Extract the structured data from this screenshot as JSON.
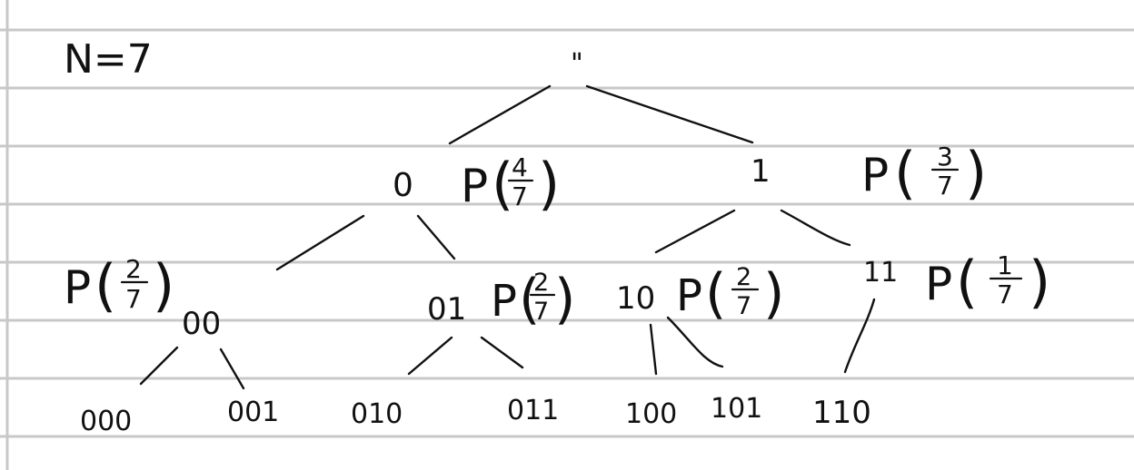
{
  "header": {
    "n_label": "N=7"
  },
  "tree": {
    "root": {
      "label": "\""
    },
    "level1": [
      {
        "label": "0",
        "prob_prefix": "P",
        "prob_num": "4",
        "prob_den": "7"
      },
      {
        "label": "1",
        "prob_prefix": "P",
        "prob_num": "3",
        "prob_den": "7"
      }
    ],
    "level2": [
      {
        "label": "00",
        "prob_prefix": "P",
        "prob_num": "2",
        "prob_den": "7"
      },
      {
        "label": "01",
        "prob_prefix": "P",
        "prob_num": "2",
        "prob_den": "7"
      },
      {
        "label": "10",
        "prob_prefix": "P",
        "prob_num": "2",
        "prob_den": "7"
      },
      {
        "label": "11",
        "prob_prefix": "P",
        "prob_num": "1",
        "prob_den": "7"
      }
    ],
    "leaves": [
      {
        "label": "000"
      },
      {
        "label": "001"
      },
      {
        "label": "010"
      },
      {
        "label": "011"
      },
      {
        "label": "100"
      },
      {
        "label": "101"
      },
      {
        "label": "110"
      }
    ]
  },
  "colors": {
    "ink": "#111111",
    "rule_lines": "#c8c8c8",
    "paper": "#ffffff"
  }
}
